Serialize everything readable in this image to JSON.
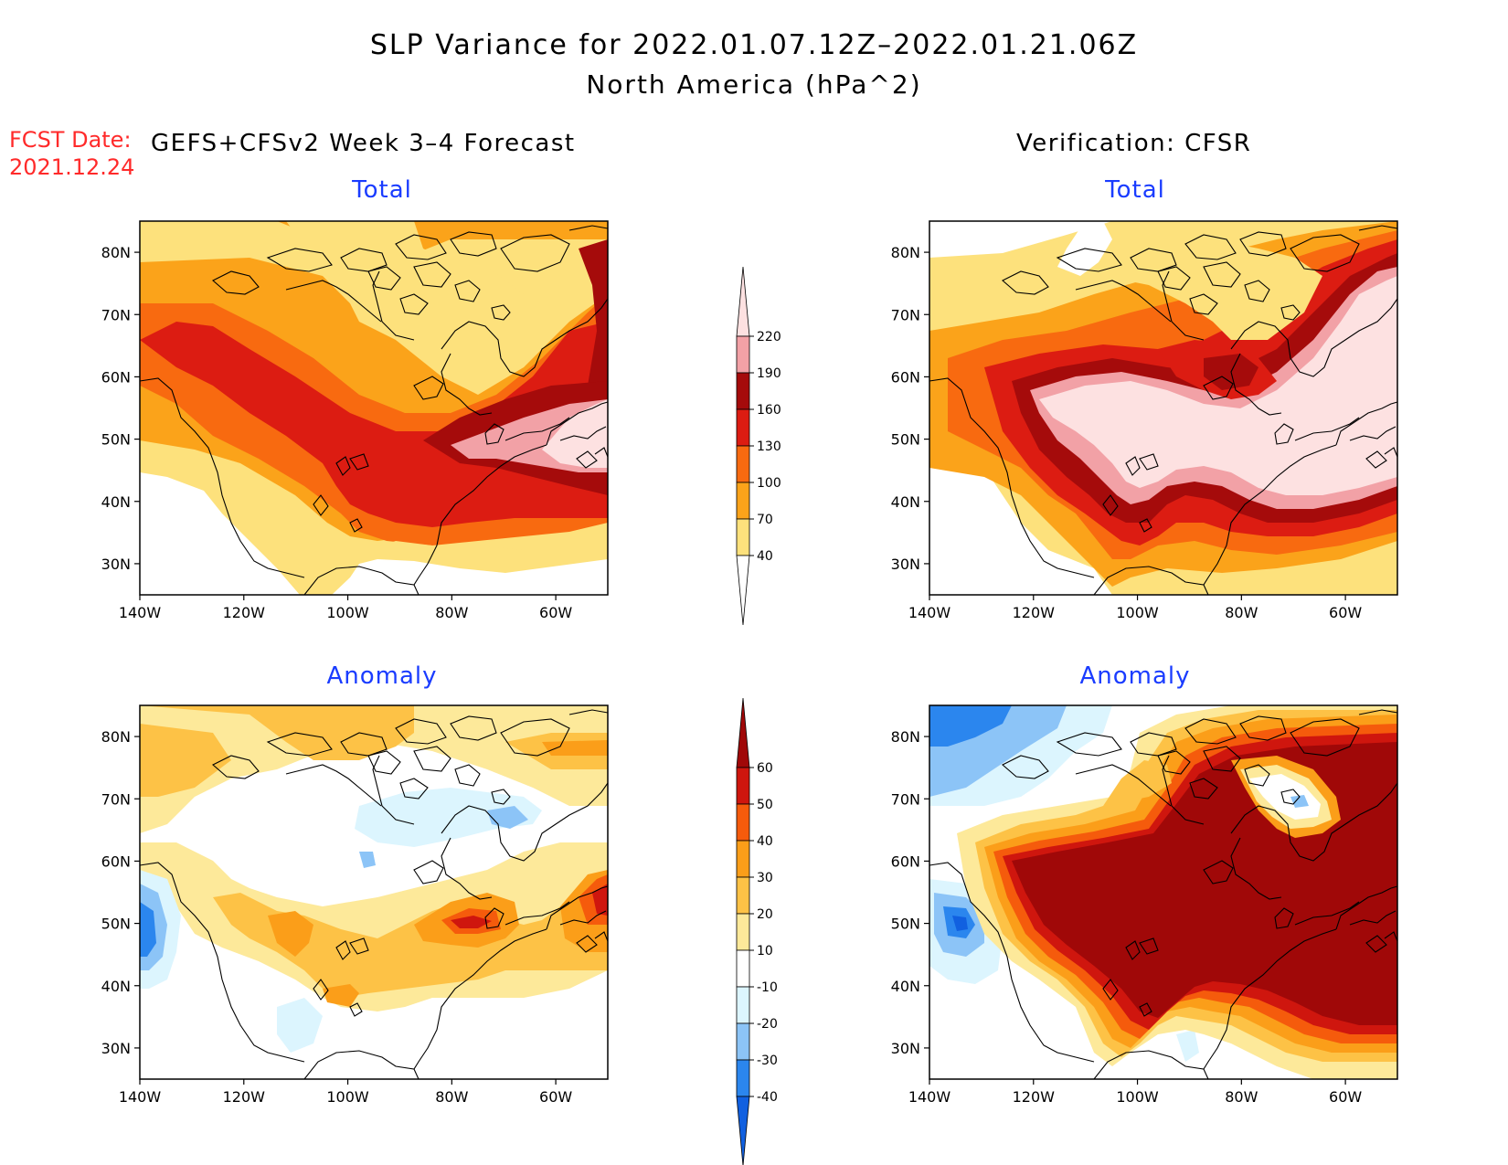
{
  "header": {
    "title": "SLP Variance for 2022.01.07.12Z–2022.01.21.06Z",
    "subtitle": "North America (hPa^2)",
    "fcst_label": "FCST Date:",
    "fcst_date": "2021.12.24",
    "left_column_title": "GEFS+CFSv2 Week 3–4 Forecast",
    "right_column_title": "Verification: CFSR"
  },
  "panels": {
    "total_title": "Total",
    "anomaly_title": "Anomaly"
  },
  "axes": {
    "lon_labels": [
      "140W",
      "120W",
      "100W",
      "80W",
      "60W"
    ],
    "lon_values": [
      -140,
      -120,
      -100,
      -80,
      -60
    ],
    "lat_labels": [
      "80N",
      "70N",
      "60N",
      "50N",
      "40N",
      "30N"
    ],
    "lat_values": [
      80,
      70,
      60,
      50,
      40,
      30
    ],
    "lon_range": [
      -140,
      -50
    ],
    "lat_range": [
      25,
      85
    ]
  },
  "colorbars": {
    "total": {
      "labels": [
        "40",
        "70",
        "100",
        "130",
        "160",
        "190",
        "220"
      ],
      "colors": [
        "#ffffff",
        "#fde17c",
        "#fba31a",
        "#f86a10",
        "#dc1c12",
        "#a50b0b",
        "#f2a1a6",
        "#fde1e1"
      ]
    },
    "anomaly": {
      "labels": [
        "-40",
        "-30",
        "-20",
        "-10",
        "10",
        "20",
        "30",
        "40",
        "50",
        "60"
      ],
      "colors": [
        "#1160e0",
        "#2b86ee",
        "#8cc4f7",
        "#dcf5fe",
        "#ffffff",
        "#fde99a",
        "#fdc246",
        "#fb9e19",
        "#f55b0c",
        "#cf160e",
        "#a00808"
      ]
    }
  }
}
